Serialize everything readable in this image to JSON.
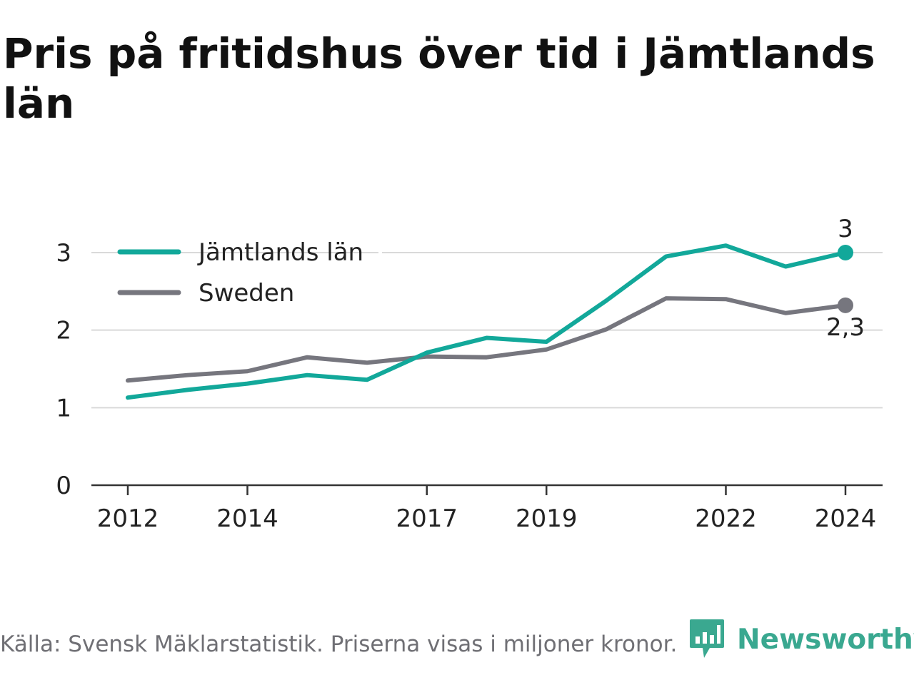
{
  "title": "Pris på fritidshus över tid i Jämtlands län",
  "footer": {
    "source": "Källa: Svensk Mäklarstatistik. Priserna visas i miljoner kronor.",
    "brand": "Newsworthy",
    "brand_icon": "bar-chart-speech-bubble-icon"
  },
  "colors": {
    "jamtland": "#12a89a",
    "sweden": "#76767e",
    "grid": "#d9d9d9",
    "axis": "#333333",
    "brand": "#3aa890"
  },
  "chart_data": {
    "type": "line",
    "title": "Pris på fritidshus över tid i Jämtlands län",
    "xlabel": "",
    "ylabel": "",
    "x": [
      2012,
      2013,
      2014,
      2015,
      2016,
      2017,
      2018,
      2019,
      2020,
      2021,
      2022,
      2023,
      2024
    ],
    "x_ticks": [
      2012,
      2014,
      2017,
      2019,
      2022,
      2024
    ],
    "y_ticks": [
      0,
      1,
      2,
      3
    ],
    "ylim": [
      0,
      3.3
    ],
    "grid": "horizontal",
    "legend": "top-left",
    "series": [
      {
        "name": "Jämtlands län",
        "values": [
          1.13,
          1.23,
          1.31,
          1.42,
          1.36,
          1.71,
          1.9,
          1.85,
          2.38,
          2.95,
          3.09,
          2.82,
          3.0
        ],
        "end_label": "3"
      },
      {
        "name": "Sweden",
        "values": [
          1.35,
          1.42,
          1.47,
          1.65,
          1.58,
          1.66,
          1.65,
          1.75,
          2.01,
          2.41,
          2.4,
          2.22,
          2.32
        ],
        "end_label": "2,3"
      }
    ]
  }
}
